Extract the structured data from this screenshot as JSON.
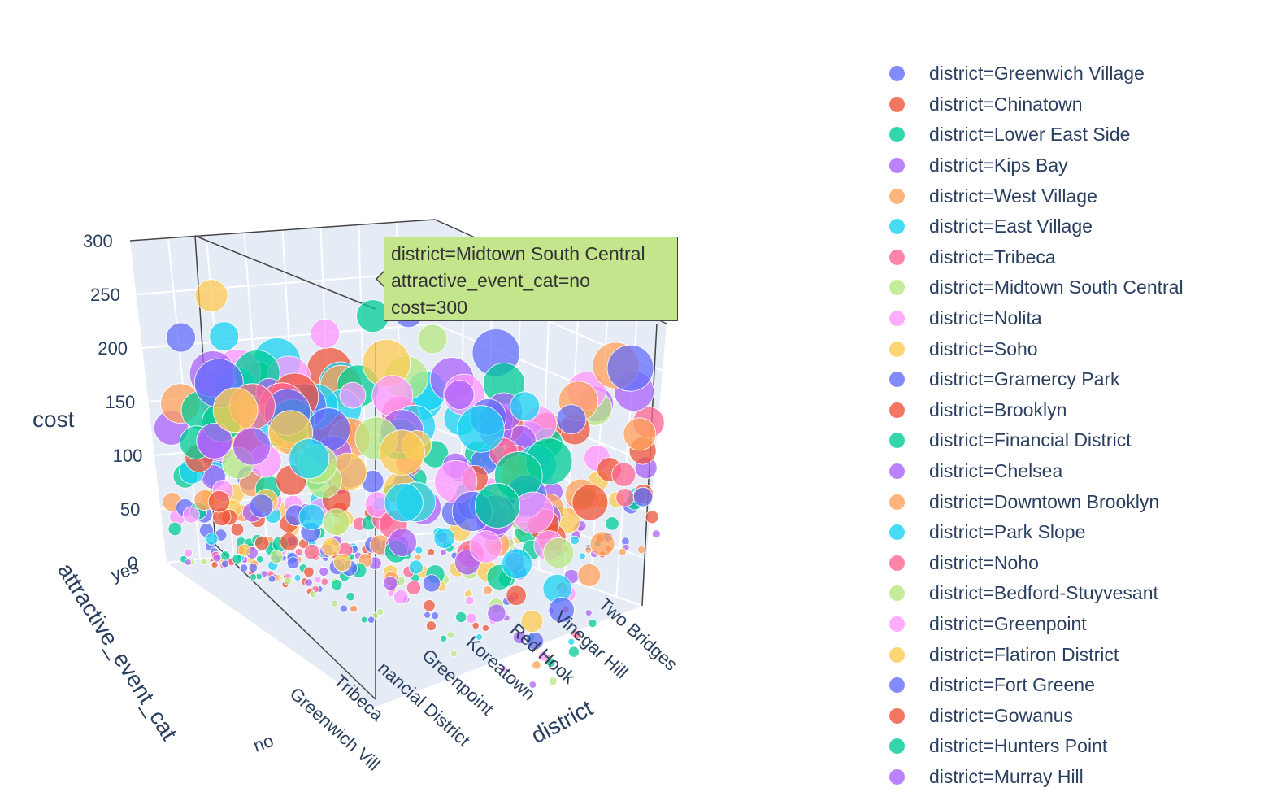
{
  "chart_data": {
    "type": "scatter3d",
    "axes": {
      "x": {
        "title": "district",
        "tick_labels": [
          "Greenwich Vill",
          "Tribeca",
          "nancial District",
          "Greenpoint",
          "Koreatown",
          "Red Hook",
          "Vinegar Hill",
          "Two Bridges"
        ]
      },
      "y": {
        "title": "attractive_event_cat",
        "tick_labels": [
          "yes",
          "no"
        ]
      },
      "z": {
        "title": "cost",
        "tick_labels": [
          "0",
          "50",
          "100",
          "150",
          "200",
          "250",
          "300"
        ],
        "range": [
          0,
          300
        ]
      }
    },
    "legend": {
      "placement": "right",
      "entries": [
        {
          "label": "district=Greenwich Village",
          "color": "#636efa"
        },
        {
          "label": "district=Chinatown",
          "color": "#EF553B"
        },
        {
          "label": "district=Lower East Side",
          "color": "#00cc96"
        },
        {
          "label": "district=Kips Bay",
          "color": "#ab63fa"
        },
        {
          "label": "district=West Village",
          "color": "#FFA15A"
        },
        {
          "label": "district=East Village",
          "color": "#19d3f3"
        },
        {
          "label": "district=Tribeca",
          "color": "#FF6692"
        },
        {
          "label": "district=Midtown South Central",
          "color": "#B6E880"
        },
        {
          "label": "district=Nolita",
          "color": "#FF97FF"
        },
        {
          "label": "district=Soho",
          "color": "#FECB52"
        },
        {
          "label": "district=Gramercy Park",
          "color": "#636efa"
        },
        {
          "label": "district=Brooklyn",
          "color": "#EF553B"
        },
        {
          "label": "district=Financial District",
          "color": "#00cc96"
        },
        {
          "label": "district=Chelsea",
          "color": "#ab63fa"
        },
        {
          "label": "district=Downtown Brooklyn",
          "color": "#FFA15A"
        },
        {
          "label": "district=Park Slope",
          "color": "#19d3f3"
        },
        {
          "label": "district=Noho",
          "color": "#FF6692"
        },
        {
          "label": "district=Bedford-Stuyvesant",
          "color": "#B6E880"
        },
        {
          "label": "district=Greenpoint",
          "color": "#FF97FF"
        },
        {
          "label": "district=Flatiron District",
          "color": "#FECB52"
        },
        {
          "label": "district=Fort Greene",
          "color": "#636efa"
        },
        {
          "label": "district=Gowanus",
          "color": "#EF553B"
        },
        {
          "label": "district=Hunters Point",
          "color": "#00cc96"
        },
        {
          "label": "district=Murray Hill",
          "color": "#ab63fa"
        }
      ]
    },
    "hover": {
      "lines": [
        "district=Midtown South Central",
        "attractive_event_cat=no",
        "cost=300"
      ],
      "color": "#c4e58c"
    },
    "scene_background": "#e5ecf6",
    "grid_color": "#ffffff"
  }
}
